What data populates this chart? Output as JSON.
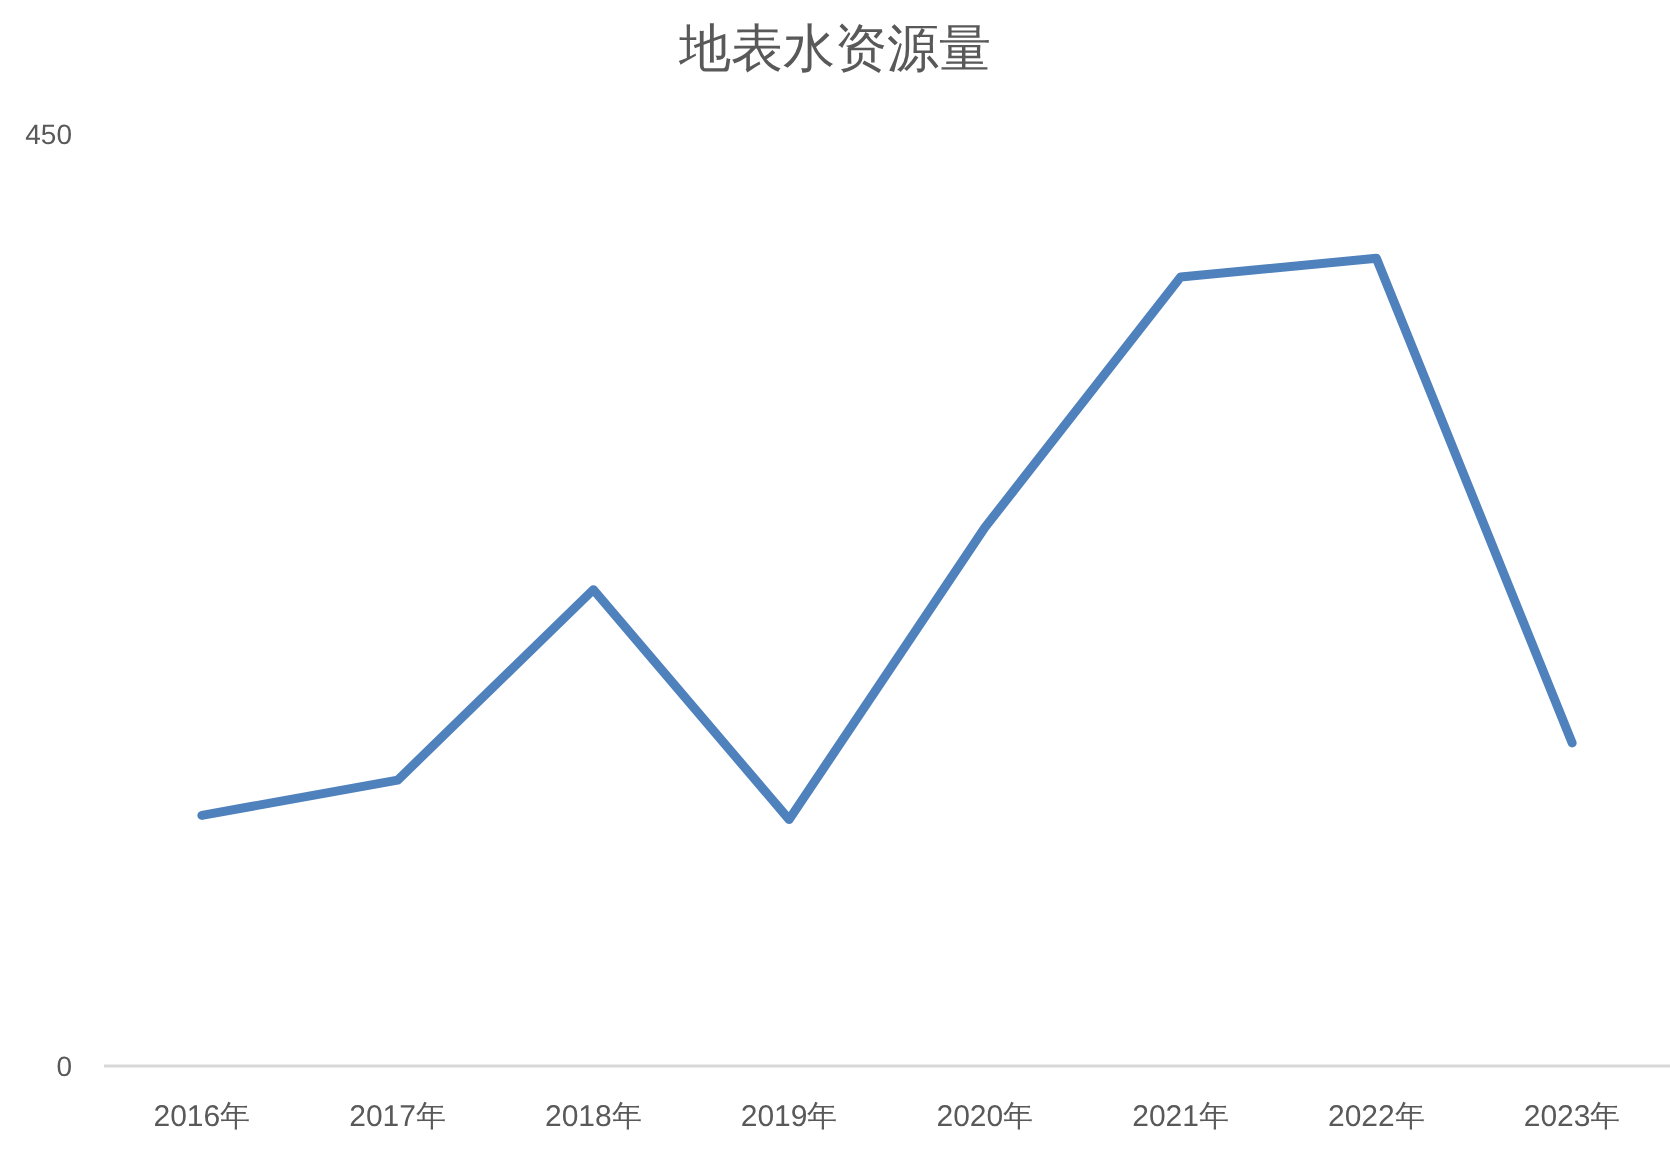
{
  "chart_data": {
    "type": "line",
    "title": "地表水资源量",
    "categories": [
      "2016年",
      "2017年",
      "2018年",
      "2019年",
      "2020年",
      "2021年",
      "2022年",
      "2023年"
    ],
    "series": [
      {
        "color": "#4f81bd",
        "values": [
          121,
          138,
          230,
          119,
          260,
          381,
          390,
          156
        ]
      }
    ],
    "ylim": [
      0,
      450
    ],
    "yticks": [
      0,
      450
    ],
    "grid": false,
    "marker": "none",
    "line_style": "solid"
  }
}
